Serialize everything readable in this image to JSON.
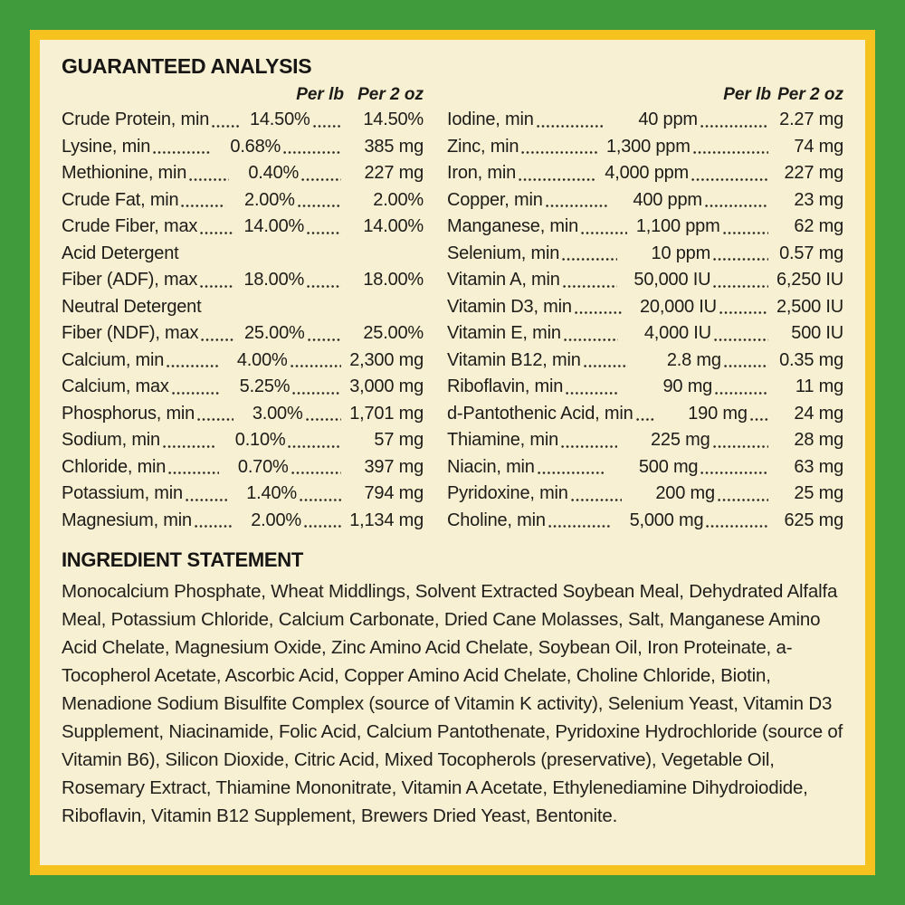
{
  "label": {
    "colors": {
      "frame_green": "#3f9b3c",
      "inner_gold": "#f6c21f",
      "background_cream": "#f7f0d2",
      "text": "#1d1c18"
    },
    "guaranteed_analysis": {
      "title": "GUARANTEED ANALYSIS",
      "col_headers": {
        "per_lb": "Per lb",
        "per_2oz": "Per 2 oz"
      },
      "left_rows": [
        {
          "label": "Crude Protein, min",
          "per_lb": "14.50%",
          "per_2oz": "14.50%"
        },
        {
          "label": "Lysine, min",
          "per_lb": "0.68%",
          "per_2oz": "385 mg"
        },
        {
          "label": "Methionine, min",
          "per_lb": "0.40%",
          "per_2oz": "227 mg"
        },
        {
          "label": "Crude Fat, min",
          "per_lb": "2.00%",
          "per_2oz": "2.00%"
        },
        {
          "label": "Crude Fiber, max",
          "per_lb": "14.00%",
          "per_2oz": "14.00%"
        },
        {
          "label": "Acid Detergent",
          "per_lb": "",
          "per_2oz": ""
        },
        {
          "label": "Fiber (ADF), max",
          "per_lb": "18.00%",
          "per_2oz": "18.00%"
        },
        {
          "label": "Neutral Detergent",
          "per_lb": "",
          "per_2oz": ""
        },
        {
          "label": "Fiber (NDF), max",
          "per_lb": "25.00%",
          "per_2oz": "25.00%"
        },
        {
          "label": "Calcium, min",
          "per_lb": "4.00%",
          "per_2oz": "2,300 mg"
        },
        {
          "label": "Calcium, max",
          "per_lb": "5.25%",
          "per_2oz": "3,000 mg"
        },
        {
          "label": "Phosphorus, min",
          "per_lb": "3.00%",
          "per_2oz": "1,701 mg"
        },
        {
          "label": "Sodium, min",
          "per_lb": "0.10%",
          "per_2oz": "57 mg"
        },
        {
          "label": "Chloride, min",
          "per_lb": "0.70%",
          "per_2oz": "397 mg"
        },
        {
          "label": "Potassium, min",
          "per_lb": "1.40%",
          "per_2oz": "794 mg"
        },
        {
          "label": "Magnesium, min",
          "per_lb": "2.00%",
          "per_2oz": "1,134 mg"
        }
      ],
      "right_rows": [
        {
          "label": "Iodine, min",
          "per_lb": "40 ppm",
          "per_2oz": "2.27 mg"
        },
        {
          "label": "Zinc, min",
          "per_lb": "1,300 ppm",
          "per_2oz": "74 mg"
        },
        {
          "label": "Iron, min",
          "per_lb": "4,000 ppm",
          "per_2oz": "227 mg"
        },
        {
          "label": "Copper, min",
          "per_lb": "400 ppm",
          "per_2oz": "23 mg"
        },
        {
          "label": "Manganese, min",
          "per_lb": "1,100 ppm",
          "per_2oz": "62 mg"
        },
        {
          "label": "Selenium, min",
          "per_lb": "10 ppm",
          "per_2oz": "0.57 mg"
        },
        {
          "label": "Vitamin A, min",
          "per_lb": "50,000 IU",
          "per_2oz": "6,250 IU"
        },
        {
          "label": "Vitamin D3, min",
          "per_lb": "20,000 IU",
          "per_2oz": "2,500 IU"
        },
        {
          "label": "Vitamin E, min",
          "per_lb": "4,000 IU",
          "per_2oz": "500 IU"
        },
        {
          "label": "Vitamin B12, min",
          "per_lb": "2.8 mg",
          "per_2oz": "0.35 mg"
        },
        {
          "label": "Riboflavin, min",
          "per_lb": "90 mg",
          "per_2oz": "11 mg"
        },
        {
          "label": "d-Pantothenic Acid, min",
          "per_lb": "190 mg",
          "per_2oz": "24 mg"
        },
        {
          "label": "Thiamine, min",
          "per_lb": "225 mg",
          "per_2oz": "28 mg"
        },
        {
          "label": "Niacin, min",
          "per_lb": "500 mg",
          "per_2oz": "63 mg"
        },
        {
          "label": "Pyridoxine, min",
          "per_lb": "200 mg",
          "per_2oz": "25 mg"
        },
        {
          "label": "Choline, min",
          "per_lb": "5,000 mg",
          "per_2oz": "625 mg"
        }
      ]
    },
    "ingredient_statement": {
      "title": "INGREDIENT STATEMENT",
      "text": "Monocalcium Phosphate, Wheat Middlings, Solvent Extracted Soybean Meal, Dehydrated Alfalfa Meal, Potassium Chloride, Calcium Carbonate, Dried Cane Molasses, Salt, Manganese Amino Acid Chelate, Magnesium Oxide, Zinc Amino Acid Chelate, Soybean Oil, Iron Proteinate, a-Tocopherol Acetate, Ascorbic Acid, Copper Amino Acid Chelate, Choline Chloride, Biotin, Menadione Sodium Bisulfite Complex (source of Vitamin K activity), Selenium Yeast, Vitamin D3 Supplement, Niacinamide, Folic Acid, Calcium Pantothenate, Pyridoxine Hydrochloride (source of Vitamin B6), Silicon Dioxide, Citric Acid, Mixed Tocopherols (preservative), Vegetable Oil, Rosemary Extract, Thiamine Mononitrate, Vitamin A Acetate, Ethylenediamine Dihydroiodide, Riboflavin, Vitamin B12 Supplement, Brewers Dried Yeast, Bentonite."
    }
  }
}
